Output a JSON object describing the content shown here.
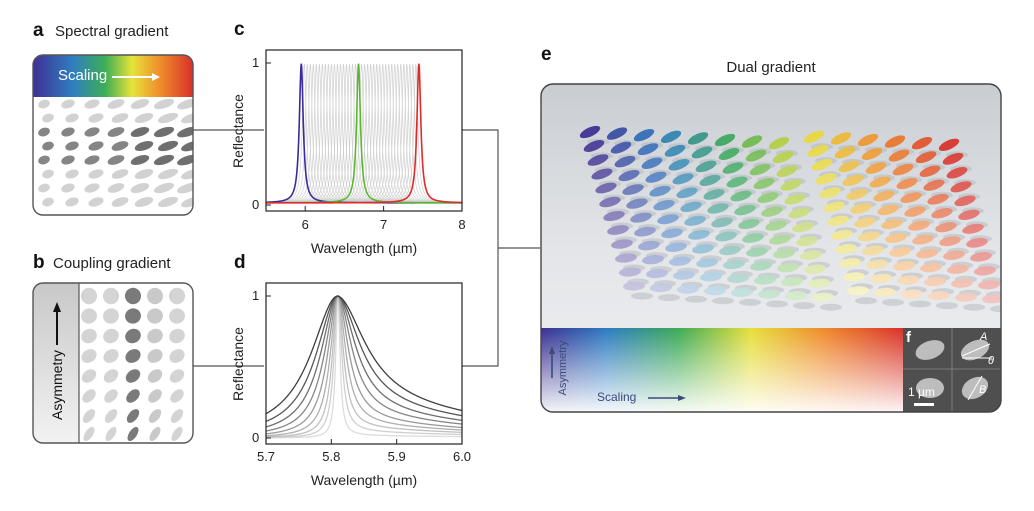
{
  "panel_a": {
    "letter": "a",
    "title": "Spectral gradient",
    "bar_label": "Scaling"
  },
  "panel_b": {
    "letter": "b",
    "title": "Coupling gradient",
    "bar_label": "Asymmetry"
  },
  "panel_c": {
    "letter": "c",
    "xlabel": "Wavelength (µm)",
    "ylabel": "Reflectance",
    "xticks": [
      "6",
      "7",
      "8"
    ],
    "yticks": [
      "0",
      "1"
    ],
    "chart_data": {
      "type": "line",
      "xlim": [
        5.5,
        8
      ],
      "ylim": [
        0,
        1
      ],
      "highlight_series": [
        {
          "name": "",
          "color": "#3a2a9a",
          "peak_x": 5.95,
          "width": 0.03
        },
        {
          "name": "",
          "color": "#5ab82e",
          "peak_x": 6.68,
          "width": 0.03
        },
        {
          "name": "",
          "color": "#e02a2a",
          "peak_x": 7.45,
          "width": 0.03
        }
      ],
      "background_series_color": "#cfcfcf",
      "background_peak_range": [
        5.95,
        7.45
      ],
      "background_series_count": 40
    }
  },
  "panel_d": {
    "letter": "d",
    "xlabel": "Wavelength (µm)",
    "ylabel": "Reflectance",
    "xticks": [
      "5.7",
      "5.8",
      "5.9",
      "6.0"
    ],
    "yticks": [
      "0",
      "1"
    ],
    "chart_data": {
      "type": "line",
      "xlim": [
        5.7,
        6.0
      ],
      "ylim": [
        0,
        1
      ],
      "peak_x": 5.81,
      "series_count": 9,
      "linewidths_um": [
        0.004,
        0.007,
        0.01,
        0.014,
        0.019,
        0.025,
        0.032,
        0.04,
        0.05
      ],
      "tail_offset": [
        0.02,
        0.05,
        0.08,
        0.11,
        0.14,
        0.18,
        0.22,
        0.27,
        0.32
      ],
      "colors": [
        "#dcdcdc",
        "#cfcfcf",
        "#c0c0c0",
        "#afafaf",
        "#9a9a9a",
        "#858585",
        "#6e6e6e",
        "#575757",
        "#3e3e3e"
      ]
    }
  },
  "panel_e": {
    "letter": "e",
    "title": "Dual gradient",
    "asymmetry_label": "Asymmetry",
    "scaling_label": "Scaling"
  },
  "panel_f": {
    "letter": "f",
    "scale_label": "1 µm",
    "label_A": "A",
    "label_B": "B",
    "label_theta": "θ"
  }
}
